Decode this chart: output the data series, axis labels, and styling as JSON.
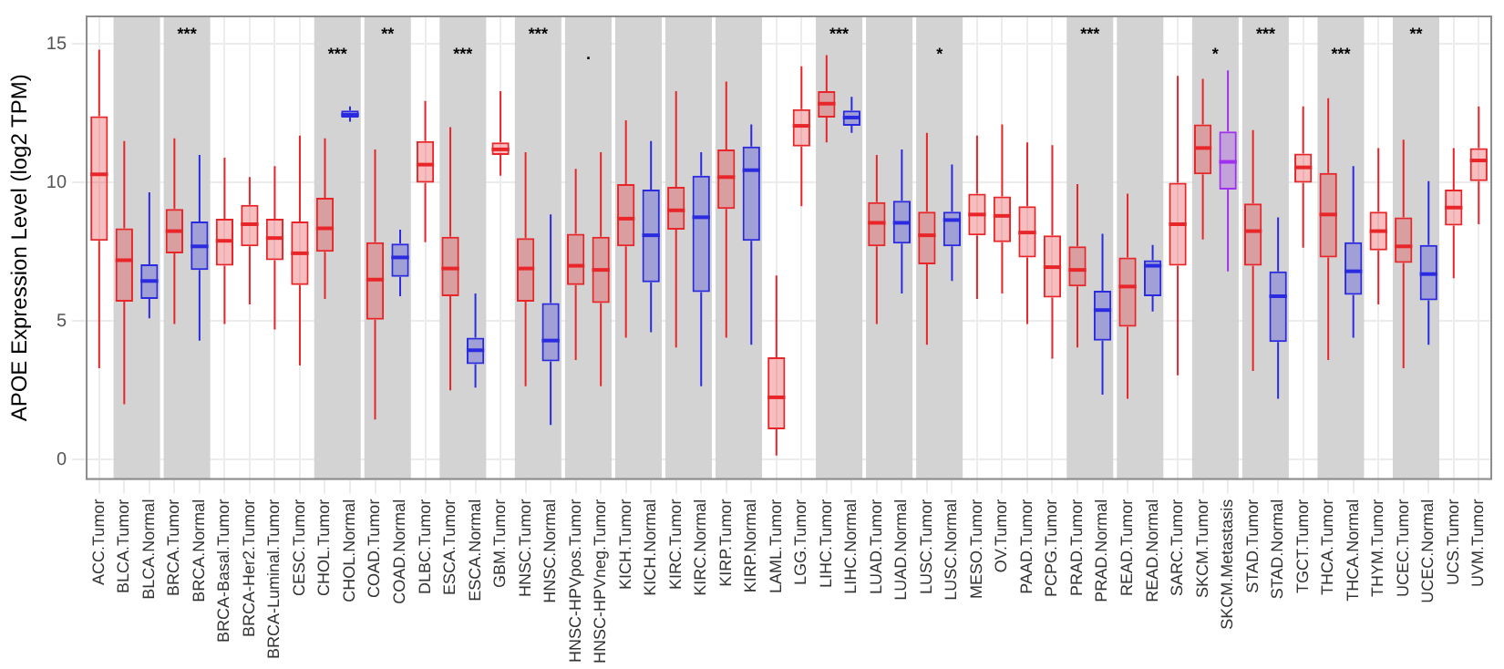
{
  "chart_data": {
    "type": "box",
    "ylabel": "APOE Expression Level (log2 TPM)",
    "categories": [
      "ACC.Tumor",
      "BLCA.Tumor",
      "BLCA.Normal",
      "BRCA.Tumor",
      "BRCA.Normal",
      "BRCA-Basal.Tumor",
      "BRCA-Her2.Tumor",
      "BRCA-Luminal.Tumor",
      "CESC.Tumor",
      "CHOL.Tumor",
      "CHOL.Normal",
      "COAD.Tumor",
      "COAD.Normal",
      "DLBC.Tumor",
      "ESCA.Tumor",
      "ESCA.Normal",
      "GBM.Tumor",
      "HNSC.Tumor",
      "HNSC.Normal",
      "HNSC-HPVpos.Tumor",
      "HNSC-HPVneg.Tumor",
      "KICH.Tumor",
      "KICH.Normal",
      "KIRC.Tumor",
      "KIRC.Normal",
      "KIRP.Tumor",
      "KIRP.Normal",
      "LAML.Tumor",
      "LGG.Tumor",
      "LIHC.Tumor",
      "LIHC.Normal",
      "LUAD.Tumor",
      "LUAD.Normal",
      "LUSC.Tumor",
      "LUSC.Normal",
      "MESO.Tumor",
      "OV.Tumor",
      "PAAD.Tumor",
      "PCPG.Tumor",
      "PRAD.Tumor",
      "PRAD.Normal",
      "READ.Tumor",
      "READ.Normal",
      "SARC.Tumor",
      "SKCM.Tumor",
      "SKCM.Metastasis",
      "STAD.Tumor",
      "STAD.Normal",
      "TGCT.Tumor",
      "THCA.Tumor",
      "THCA.Normal",
      "THYM.Tumor",
      "UCEC.Tumor",
      "UCEC.Normal",
      "UCS.Tumor",
      "UVM.Tumor"
    ],
    "boxes": [
      {
        "low": 3.3,
        "q1": 7.9,
        "median": 10.3,
        "q3": 12.4,
        "high": 14.8
      },
      {
        "low": 2.0,
        "q1": 5.7,
        "median": 7.2,
        "q3": 8.35,
        "high": 11.5
      },
      {
        "low": 5.1,
        "q1": 5.8,
        "median": 6.45,
        "q3": 7.05,
        "high": 9.65
      },
      {
        "low": 4.9,
        "q1": 7.45,
        "median": 8.25,
        "q3": 9.05,
        "high": 11.6
      },
      {
        "low": 4.3,
        "q1": 6.85,
        "median": 7.7,
        "q3": 8.6,
        "high": 11.0
      },
      {
        "low": 4.9,
        "q1": 7.0,
        "median": 7.9,
        "q3": 8.7,
        "high": 10.9
      },
      {
        "low": 5.6,
        "q1": 7.7,
        "median": 8.5,
        "q3": 9.2,
        "high": 10.2
      },
      {
        "low": 4.7,
        "q1": 7.2,
        "median": 8.0,
        "q3": 8.7,
        "high": 10.6
      },
      {
        "low": 3.4,
        "q1": 6.3,
        "median": 7.45,
        "q3": 8.6,
        "high": 11.7
      },
      {
        "low": 5.8,
        "q1": 7.5,
        "median": 8.35,
        "q3": 9.45,
        "high": 11.6
      },
      {
        "low": 12.2,
        "q1": 12.35,
        "median": 12.45,
        "q3": 12.6,
        "high": 12.75
      },
      {
        "low": 1.45,
        "q1": 5.05,
        "median": 6.5,
        "q3": 7.85,
        "high": 11.2
      },
      {
        "low": 5.9,
        "q1": 6.6,
        "median": 7.3,
        "q3": 7.8,
        "high": 8.3
      },
      {
        "low": 7.85,
        "q1": 10.0,
        "median": 10.65,
        "q3": 11.5,
        "high": 12.95
      },
      {
        "low": 2.5,
        "q1": 5.9,
        "median": 6.9,
        "q3": 8.05,
        "high": 12.0
      },
      {
        "low": 2.6,
        "q1": 3.45,
        "median": 3.95,
        "q3": 4.4,
        "high": 6.0
      },
      {
        "low": 10.25,
        "q1": 11.0,
        "median": 11.2,
        "q3": 11.45,
        "high": 13.3
      },
      {
        "low": 2.65,
        "q1": 5.7,
        "median": 6.9,
        "q3": 8.0,
        "high": 11.1
      },
      {
        "low": 1.25,
        "q1": 3.55,
        "median": 4.3,
        "q3": 5.65,
        "high": 8.85
      },
      {
        "low": 3.6,
        "q1": 6.3,
        "median": 7.0,
        "q3": 8.15,
        "high": 10.5
      },
      {
        "low": 2.65,
        "q1": 5.65,
        "median": 6.85,
        "q3": 8.05,
        "high": 11.1
      },
      {
        "low": 4.4,
        "q1": 7.7,
        "median": 8.7,
        "q3": 9.95,
        "high": 12.25
      },
      {
        "low": 4.6,
        "q1": 6.4,
        "median": 8.1,
        "q3": 9.75,
        "high": 11.5
      },
      {
        "low": 4.05,
        "q1": 8.3,
        "median": 9.0,
        "q3": 9.85,
        "high": 13.3
      },
      {
        "low": 2.65,
        "q1": 6.05,
        "median": 8.75,
        "q3": 10.25,
        "high": 11.1
      },
      {
        "low": 4.4,
        "q1": 9.05,
        "median": 10.2,
        "q3": 11.2,
        "high": 13.65
      },
      {
        "low": 4.15,
        "q1": 7.9,
        "median": 10.45,
        "q3": 11.3,
        "high": 12.1
      },
      {
        "low": 0.15,
        "q1": 1.1,
        "median": 2.25,
        "q3": 3.7,
        "high": 6.65
      },
      {
        "low": 9.15,
        "q1": 11.3,
        "median": 12.05,
        "q3": 12.65,
        "high": 14.2
      },
      {
        "low": 11.45,
        "q1": 12.35,
        "median": 12.85,
        "q3": 13.3,
        "high": 14.6
      },
      {
        "low": 11.8,
        "q1": 12.05,
        "median": 12.35,
        "q3": 12.6,
        "high": 13.1
      },
      {
        "low": 4.9,
        "q1": 7.7,
        "median": 8.55,
        "q3": 9.3,
        "high": 11.0
      },
      {
        "low": 6.0,
        "q1": 7.8,
        "median": 8.55,
        "q3": 9.35,
        "high": 11.2
      },
      {
        "low": 4.15,
        "q1": 7.05,
        "median": 8.1,
        "q3": 8.95,
        "high": 11.8
      },
      {
        "low": 6.45,
        "q1": 7.7,
        "median": 8.65,
        "q3": 8.95,
        "high": 10.65
      },
      {
        "low": 5.8,
        "q1": 8.1,
        "median": 8.85,
        "q3": 9.6,
        "high": 11.7
      },
      {
        "low": 6.0,
        "q1": 7.85,
        "median": 8.8,
        "q3": 9.5,
        "high": 12.1
      },
      {
        "low": 4.9,
        "q1": 7.3,
        "median": 8.2,
        "q3": 9.15,
        "high": 11.45
      },
      {
        "low": 3.65,
        "q1": 5.85,
        "median": 6.95,
        "q3": 8.1,
        "high": 11.35
      },
      {
        "low": 4.05,
        "q1": 6.25,
        "median": 6.85,
        "q3": 7.7,
        "high": 9.95
      },
      {
        "low": 2.35,
        "q1": 4.3,
        "median": 5.4,
        "q3": 6.1,
        "high": 8.15
      },
      {
        "low": 2.2,
        "q1": 4.8,
        "median": 6.25,
        "q3": 7.3,
        "high": 9.6
      },
      {
        "low": 5.35,
        "q1": 5.9,
        "median": 7.0,
        "q3": 7.2,
        "high": 7.75
      },
      {
        "low": 3.05,
        "q1": 7.0,
        "median": 8.5,
        "q3": 10.0,
        "high": 13.85
      },
      {
        "low": 7.95,
        "q1": 10.3,
        "median": 11.25,
        "q3": 12.1,
        "high": 13.75
      },
      {
        "low": 6.8,
        "q1": 9.75,
        "median": 10.75,
        "q3": 11.85,
        "high": 14.05
      },
      {
        "low": 3.2,
        "q1": 7.0,
        "median": 8.25,
        "q3": 9.25,
        "high": 11.9
      },
      {
        "low": 2.2,
        "q1": 4.25,
        "median": 5.9,
        "q3": 6.8,
        "high": 8.75
      },
      {
        "low": 7.65,
        "q1": 10.0,
        "median": 10.55,
        "q3": 11.05,
        "high": 12.75
      },
      {
        "low": 3.6,
        "q1": 7.3,
        "median": 8.85,
        "q3": 10.35,
        "high": 13.05
      },
      {
        "low": 4.4,
        "q1": 5.95,
        "median": 6.8,
        "q3": 7.85,
        "high": 10.6
      },
      {
        "low": 5.6,
        "q1": 7.55,
        "median": 8.25,
        "q3": 8.95,
        "high": 11.25
      },
      {
        "low": 3.3,
        "q1": 7.1,
        "median": 7.7,
        "q3": 8.75,
        "high": 11.55
      },
      {
        "low": 4.15,
        "q1": 5.75,
        "median": 6.7,
        "q3": 7.75,
        "high": 10.05
      },
      {
        "low": 6.55,
        "q1": 8.45,
        "median": 9.1,
        "q3": 9.75,
        "high": 11.25
      },
      {
        "low": 8.5,
        "q1": 10.05,
        "median": 10.8,
        "q3": 11.25,
        "high": 12.75
      }
    ],
    "colors": [
      "#e8262a",
      "#e8262a",
      "#2a2ae0",
      "#e8262a",
      "#2a2ae0",
      "#e8262a",
      "#e8262a",
      "#e8262a",
      "#e8262a",
      "#e8262a",
      "#2a2ae0",
      "#e8262a",
      "#2a2ae0",
      "#e8262a",
      "#e8262a",
      "#2a2ae0",
      "#e8262a",
      "#e8262a",
      "#2a2ae0",
      "#e8262a",
      "#e8262a",
      "#e8262a",
      "#2a2ae0",
      "#e8262a",
      "#2a2ae0",
      "#e8262a",
      "#2a2ae0",
      "#e8262a",
      "#e8262a",
      "#e8262a",
      "#2a2ae0",
      "#e8262a",
      "#2a2ae0",
      "#e8262a",
      "#2a2ae0",
      "#e8262a",
      "#e8262a",
      "#e8262a",
      "#e8262a",
      "#e8262a",
      "#2a2ae0",
      "#e8262a",
      "#2a2ae0",
      "#e8262a",
      "#e8262a",
      "#a030f0",
      "#e8262a",
      "#2a2ae0",
      "#e8262a",
      "#e8262a",
      "#2a2ae0",
      "#e8262a",
      "#e8262a",
      "#2a2ae0",
      "#e8262a",
      "#e8262a"
    ],
    "bands": [
      {
        "axis": "x",
        "from": "BLCA.Tumor",
        "to": "BLCA.Normal",
        "color": "#d3d3d3"
      },
      {
        "axis": "x",
        "from": "BRCA.Tumor",
        "to": "BRCA.Normal",
        "color": "#d3d3d3",
        "label": "***"
      },
      {
        "axis": "x",
        "from": "CHOL.Tumor",
        "to": "CHOL.Normal",
        "color": "#d3d3d3",
        "label": "***"
      },
      {
        "axis": "x",
        "from": "COAD.Tumor",
        "to": "COAD.Normal",
        "color": "#d3d3d3",
        "label": "**"
      },
      {
        "axis": "x",
        "from": "ESCA.Tumor",
        "to": "ESCA.Normal",
        "color": "#d3d3d3",
        "label": "***"
      },
      {
        "axis": "x",
        "from": "HNSC.Tumor",
        "to": "HNSC.Normal",
        "color": "#d3d3d3",
        "label": "***"
      },
      {
        "axis": "x",
        "from": "HNSC-HPVpos.Tumor",
        "to": "HNSC-HPVneg.Tumor",
        "color": "#d3d3d3",
        "label": "."
      },
      {
        "axis": "x",
        "from": "KICH.Tumor",
        "to": "KICH.Normal",
        "color": "#d3d3d3"
      },
      {
        "axis": "x",
        "from": "KIRC.Tumor",
        "to": "KIRC.Normal",
        "color": "#d3d3d3"
      },
      {
        "axis": "x",
        "from": "KIRP.Tumor",
        "to": "KIRP.Normal",
        "color": "#d3d3d3"
      },
      {
        "axis": "x",
        "from": "LIHC.Tumor",
        "to": "LIHC.Normal",
        "color": "#d3d3d3",
        "label": "***"
      },
      {
        "axis": "x",
        "from": "LUAD.Tumor",
        "to": "LUAD.Normal",
        "color": "#d3d3d3"
      },
      {
        "axis": "x",
        "from": "LUSC.Tumor",
        "to": "LUSC.Normal",
        "color": "#d3d3d3",
        "label": "*"
      },
      {
        "axis": "x",
        "from": "PRAD.Tumor",
        "to": "PRAD.Normal",
        "color": "#d3d3d3",
        "label": "***"
      },
      {
        "axis": "x",
        "from": "READ.Tumor",
        "to": "READ.Normal",
        "color": "#d3d3d3"
      },
      {
        "axis": "x",
        "from": "SKCM.Tumor",
        "to": "SKCM.Metastasis",
        "color": "#d3d3d3",
        "label": "*"
      },
      {
        "axis": "x",
        "from": "STAD.Tumor",
        "to": "STAD.Normal",
        "color": "#d3d3d3",
        "label": "***"
      },
      {
        "axis": "x",
        "from": "THCA.Tumor",
        "to": "THCA.Normal",
        "color": "#d3d3d3",
        "label": "***"
      },
      {
        "axis": "x",
        "from": "UCEC.Tumor",
        "to": "UCEC.Normal",
        "color": "#d3d3d3",
        "label": "**"
      }
    ],
    "ylim": [
      -0.7,
      16
    ],
    "yticks": [
      0,
      5,
      10,
      15
    ],
    "grid": true,
    "legend": false
  }
}
